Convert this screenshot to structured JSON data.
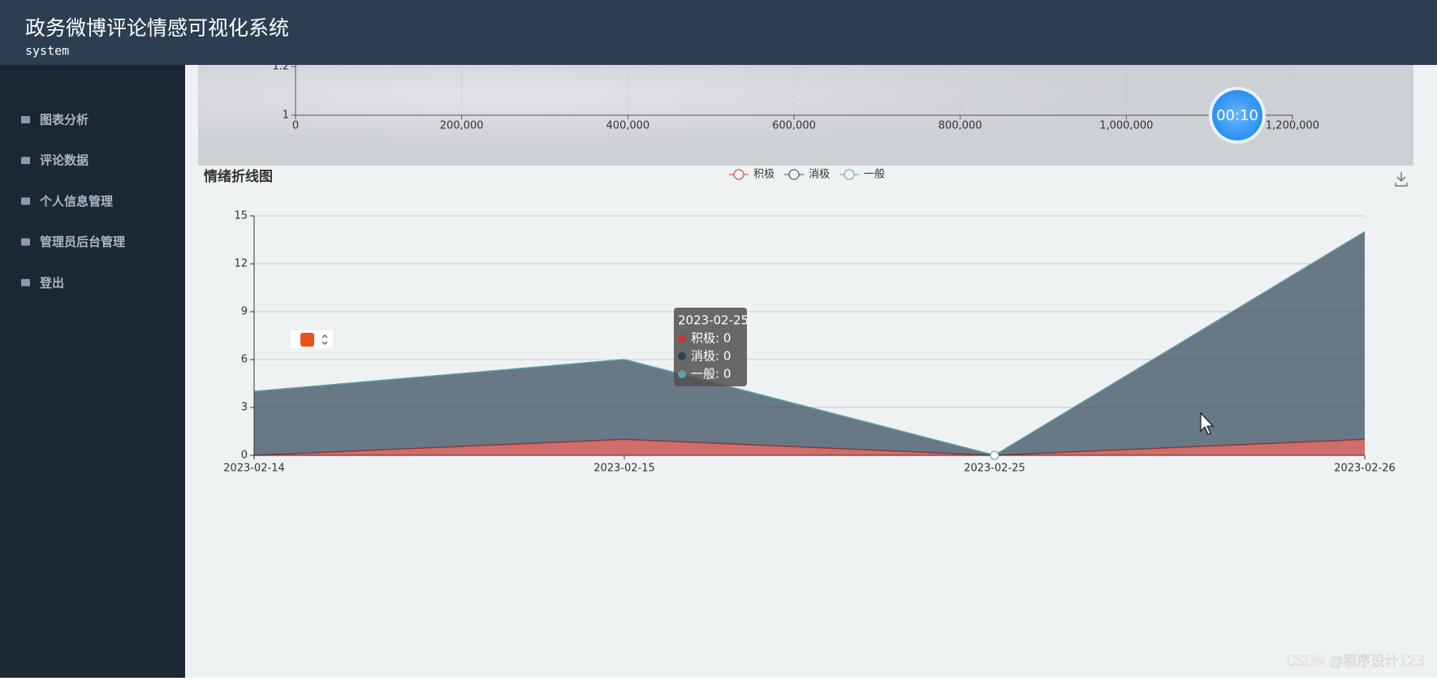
{
  "header": {
    "title": "政务微博评论情感可视化系统",
    "subtitle": "system"
  },
  "sidebar": {
    "items": [
      "图表分析",
      "评论数据",
      "个人信息管理",
      "管理员后台管理",
      "登出"
    ]
  },
  "timer": "00:10",
  "tooltip": {
    "title": "2023-02-25",
    "items": [
      "积极: 0",
      "消极: 0",
      "一般: 0"
    ],
    "colors": [
      "#c23531",
      "#2f4554",
      "#61a0a8"
    ]
  },
  "watermark": "CSDN @程序设计123",
  "chart_data": [
    {
      "type": "scatter",
      "xlim": [
        0,
        1200000
      ],
      "xticks": [
        0,
        {
          "value": 200000,
          "label": "200,000"
        },
        {
          "value": 400000,
          "label": "400,000"
        },
        {
          "value": 600000,
          "label": "600,000"
        },
        {
          "value": 800000,
          "label": "800,000"
        },
        {
          "value": 1000000,
          "label": "1,000,000"
        },
        {
          "value": 1200000,
          "label": "1,200,000"
        }
      ],
      "ylim": [
        1,
        1.2
      ],
      "yticks": [
        1,
        1.2
      ],
      "grid": true
    },
    {
      "type": "area",
      "title": "情绪折线图",
      "stacked": true,
      "grid": true,
      "categories": [
        "2023-02-14",
        "2023-02-15",
        "2023-02-25",
        "2023-02-26"
      ],
      "series": [
        {
          "name": "积极",
          "color": "#c23531",
          "values": [
            0,
            1,
            0,
            1
          ]
        },
        {
          "name": "消极",
          "color": "#2f4554",
          "values": [
            4,
            5,
            0,
            13
          ]
        },
        {
          "name": "一般",
          "color": "#61a0a8",
          "values": [
            0,
            0,
            0,
            0
          ]
        }
      ],
      "ylim": [
        0,
        15
      ],
      "yticks": [
        0,
        3,
        6,
        9,
        12,
        15
      ]
    }
  ]
}
